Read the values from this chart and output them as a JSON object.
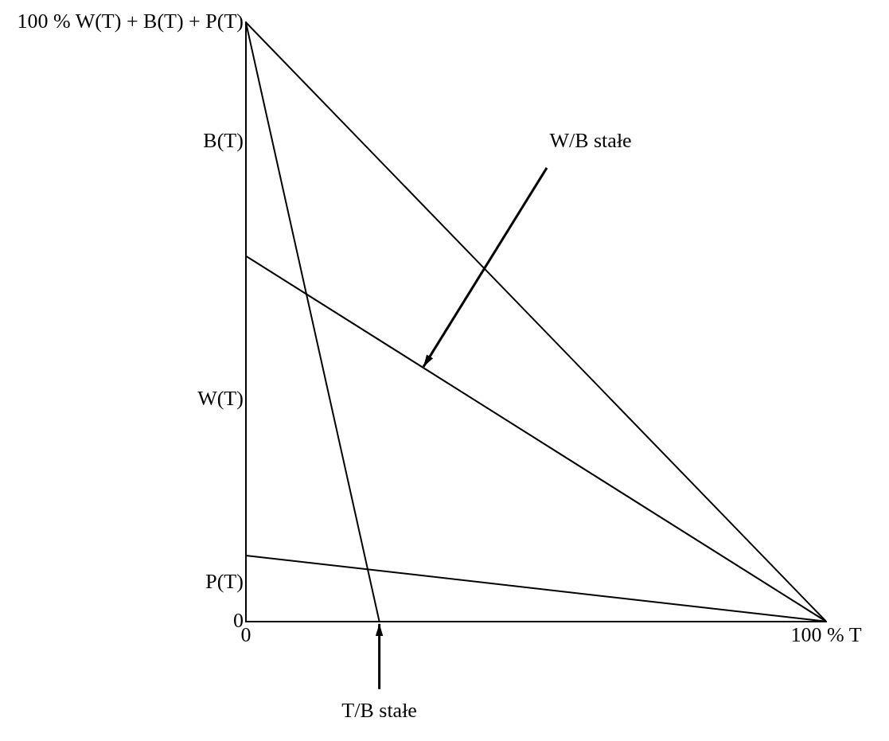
{
  "chart_data": {
    "type": "line",
    "xlim": [
      0,
      100
    ],
    "ylim": [
      0,
      100
    ],
    "xticks": [
      0,
      {
        "value": 100,
        "label": "100 % T"
      }
    ],
    "yticks": [
      0,
      {
        "value": 6.5,
        "label": "P(T)"
      },
      {
        "value": 37,
        "label": "W(T)"
      },
      {
        "value": 80,
        "label": "B(T)"
      },
      {
        "value": 100,
        "label": "100 % W(T) + B(T) + P(T)"
      }
    ],
    "series": [
      {
        "color": "#000000",
        "x": [
          0,
          100
        ],
        "values": [
          100,
          0
        ]
      },
      {
        "color": "#000000",
        "x": [
          0,
          100
        ],
        "values": [
          61,
          0
        ]
      },
      {
        "color": "#000000",
        "x": [
          0,
          100
        ],
        "values": [
          11,
          0
        ]
      },
      {
        "color": "#000000",
        "x": [
          0,
          23
        ],
        "values": [
          100,
          0
        ]
      }
    ],
    "annotations": [
      {
        "text": "W/B stałe",
        "x": 30.6,
        "y": 42.5
      },
      {
        "text": "T/B stałe",
        "x": 23,
        "y": 0
      }
    ],
    "grid": false,
    "legend": false,
    "marker": "none",
    "line_style": "solid"
  }
}
